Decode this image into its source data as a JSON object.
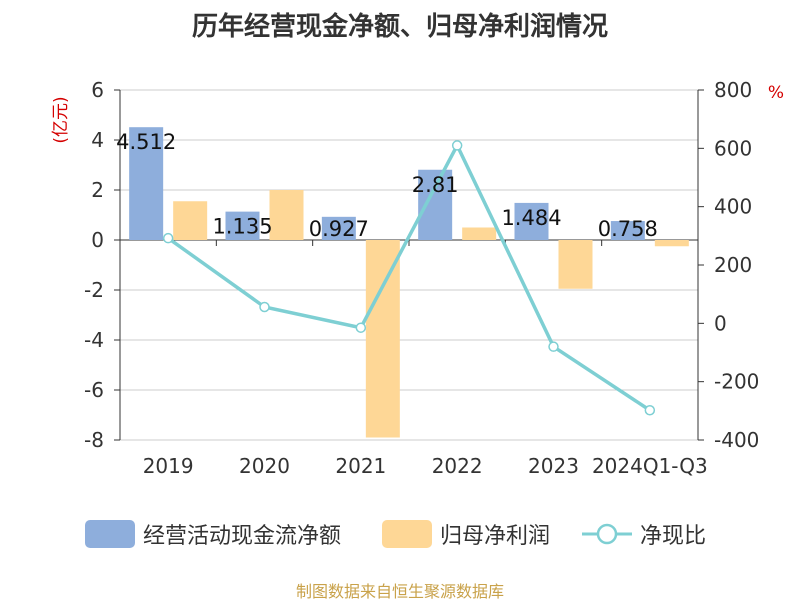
{
  "title": "历年经营现金净额、归母净利润情况",
  "source": "制图数据来自恒生聚源数据库",
  "colors": {
    "operating_cash": "#8eaedc",
    "net_profit": "#fed796",
    "ratio": "#7ecfd3",
    "grid": "#cccccc",
    "axis": "#333333",
    "unit": "#d40000"
  },
  "chart_data": {
    "type": "bar",
    "title": "历年经营现金净额、归母净利润情况",
    "categories": [
      "2019",
      "2020",
      "2021",
      "2022",
      "2023",
      "2024Q1-Q3"
    ],
    "y_left": {
      "label": "(亿元)",
      "min": -8,
      "max": 6,
      "ticks": [
        6,
        4,
        2,
        0,
        -2,
        -4,
        -6,
        -8
      ]
    },
    "y_right": {
      "label": "%",
      "min": -400,
      "max": 800,
      "ticks": [
        800,
        600,
        400,
        200,
        0,
        -200,
        -400
      ]
    },
    "series": [
      {
        "name": "经营活动现金流净额",
        "type": "bar",
        "axis": "left",
        "values": [
          4.512,
          1.135,
          0.927,
          2.81,
          1.484,
          0.758
        ],
        "labels": [
          "4.512",
          "1.135",
          "0.927",
          "2.81",
          "1.484",
          "0.758"
        ]
      },
      {
        "name": "归母净利润",
        "type": "bar",
        "axis": "left",
        "values": [
          1.55,
          2.0,
          -7.9,
          0.5,
          -1.95,
          -0.25
        ]
      },
      {
        "name": "净现比",
        "type": "line",
        "axis": "right",
        "values": [
          292,
          56,
          -15,
          610,
          -80,
          -298
        ]
      }
    ],
    "legend_position": "bottom"
  },
  "legend": [
    {
      "name": "经营活动现金流净额"
    },
    {
      "name": "归母净利润"
    },
    {
      "name": "净现比"
    }
  ]
}
